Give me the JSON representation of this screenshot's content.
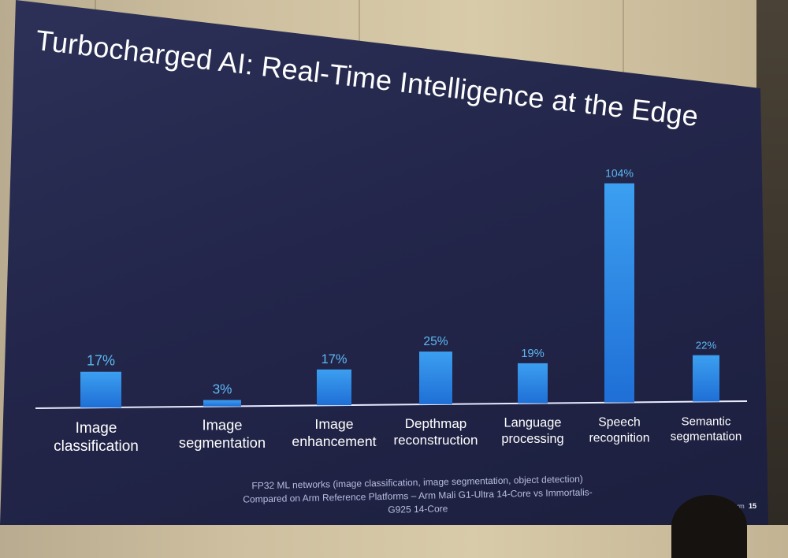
{
  "slide": {
    "title": "Turbocharged AI: Real-Time Intelligence at the Edge",
    "footnote_line1": "FP32 ML networks (image classification, image segmentation, object detection)",
    "footnote_line2": "Compared on Arm Reference Platforms – Arm Mali G1-Ultra 14-Core vs Immortalis-G925 14-Core",
    "brand": "Arm",
    "page_number": "15"
  },
  "chart_data": {
    "type": "bar",
    "title": "",
    "xlabel": "",
    "ylabel": "",
    "categories": [
      [
        "Image",
        "classification"
      ],
      [
        "Image",
        "segmentation"
      ],
      [
        "Image",
        "enhancement"
      ],
      [
        "Depthmap",
        "reconstruction"
      ],
      [
        "Language",
        "processing"
      ],
      [
        "Speech",
        "recognition"
      ],
      [
        "Semantic",
        "segmentation"
      ]
    ],
    "values": [
      17,
      3,
      17,
      25,
      19,
      104,
      22
    ],
    "value_labels": [
      "17%",
      "3%",
      "17%",
      "25%",
      "19%",
      "104%",
      "22%"
    ],
    "unit": "%",
    "ylim": [
      0,
      104
    ],
    "grid": false,
    "legend": "none",
    "colors": {
      "bar_top": "#3c9ff0",
      "bar_bottom": "#1f6fd6",
      "value_label": "#5db8f5",
      "baseline": "#e8ecff"
    }
  }
}
